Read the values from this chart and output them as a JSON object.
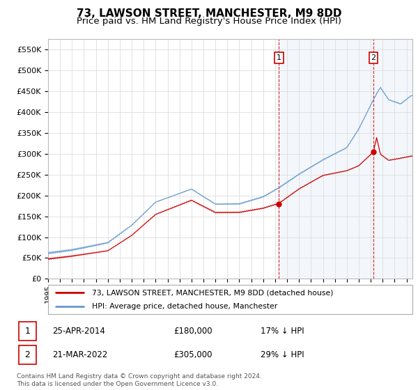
{
  "title": "73, LAWSON STREET, MANCHESTER, M9 8DD",
  "subtitle": "Price paid vs. HM Land Registry's House Price Index (HPI)",
  "ylabel_values": [
    "£0",
    "£50K",
    "£100K",
    "£150K",
    "£200K",
    "£250K",
    "£300K",
    "£350K",
    "£400K",
    "£450K",
    "£500K",
    "£550K"
  ],
  "yticks": [
    0,
    50000,
    100000,
    150000,
    200000,
    250000,
    300000,
    350000,
    400000,
    450000,
    500000,
    550000
  ],
  "xlim_start": 1995.0,
  "xlim_end": 2025.5,
  "ylim": [
    0,
    575000
  ],
  "hpi_color": "#6699cc",
  "price_color": "#cc0000",
  "marker1_date": 2014.32,
  "marker1_value": 180000,
  "marker2_date": 2022.22,
  "marker2_value": 305000,
  "vline1_date": 2014.32,
  "vline2_date": 2022.22,
  "legend1": "73, LAWSON STREET, MANCHESTER, M9 8DD (detached house)",
  "legend2": "HPI: Average price, detached house, Manchester",
  "table_row1_num": "1",
  "table_row1_date": "25-APR-2014",
  "table_row1_price": "£180,000",
  "table_row1_hpi": "17% ↓ HPI",
  "table_row2_num": "2",
  "table_row2_date": "21-MAR-2022",
  "table_row2_price": "£305,000",
  "table_row2_hpi": "29% ↓ HPI",
  "footnote": "Contains HM Land Registry data © Crown copyright and database right 2024.\nThis data is licensed under the Open Government Licence v3.0.",
  "background_color": "#ffffff",
  "grid_color": "#dddddd",
  "title_fontsize": 11,
  "subtitle_fontsize": 9.5,
  "span_alpha": 0.08
}
